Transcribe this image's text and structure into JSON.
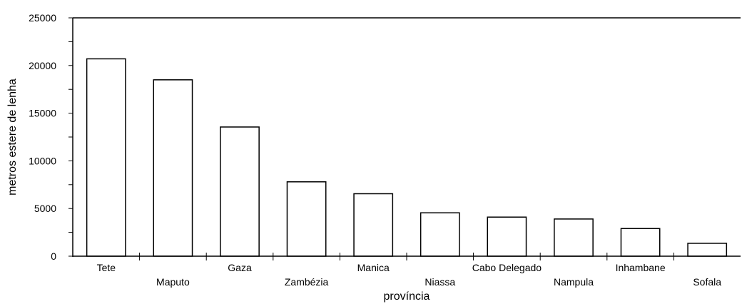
{
  "chart_data": {
    "type": "bar",
    "xlabel": "província",
    "ylabel": "metros estere de lenha",
    "ylim": [
      0,
      25000
    ],
    "yticks": [
      "0",
      "5000",
      "10000",
      "15000",
      "20000",
      "25000"
    ],
    "categories": [
      "Tete",
      "Maputo",
      "Gaza",
      "Zambézia",
      "Manica",
      "Niassa",
      "Cabo Delegado",
      "Nampula",
      "Inhambane",
      "Sofala"
    ],
    "values": [
      20700,
      18500,
      13550,
      7800,
      6550,
      4550,
      4100,
      3900,
      2900,
      1350
    ],
    "grid": false,
    "legend": "none"
  }
}
